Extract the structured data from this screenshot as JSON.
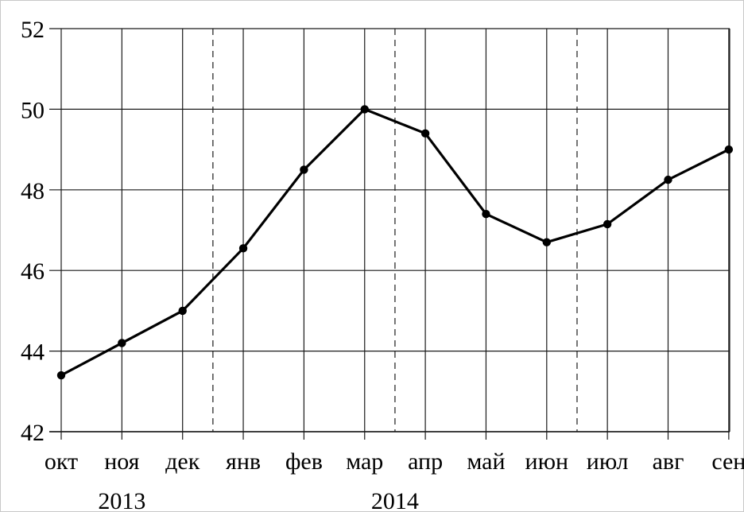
{
  "chart_data": {
    "type": "line",
    "categories": [
      "окт",
      "ноя",
      "дек",
      "янв",
      "фев",
      "мар",
      "апр",
      "май",
      "июн",
      "июл",
      "авг",
      "сен"
    ],
    "years": [
      {
        "label": "2013",
        "category_index": 1
      },
      {
        "label": "2014",
        "category_index": 5.5
      }
    ],
    "year_separators_after": [
      2,
      5,
      8
    ],
    "series": [
      {
        "values": [
          43.4,
          44.2,
          45.0,
          46.55,
          48.5,
          50.0,
          49.4,
          47.4,
          46.7,
          47.15,
          48.25,
          49.0
        ]
      }
    ],
    "ylim": [
      42,
      52
    ],
    "yticks": [
      42,
      44,
      46,
      48,
      50,
      52
    ],
    "grid": true,
    "colors": {
      "line": "#000000",
      "grid": "#1a1a1a"
    }
  }
}
